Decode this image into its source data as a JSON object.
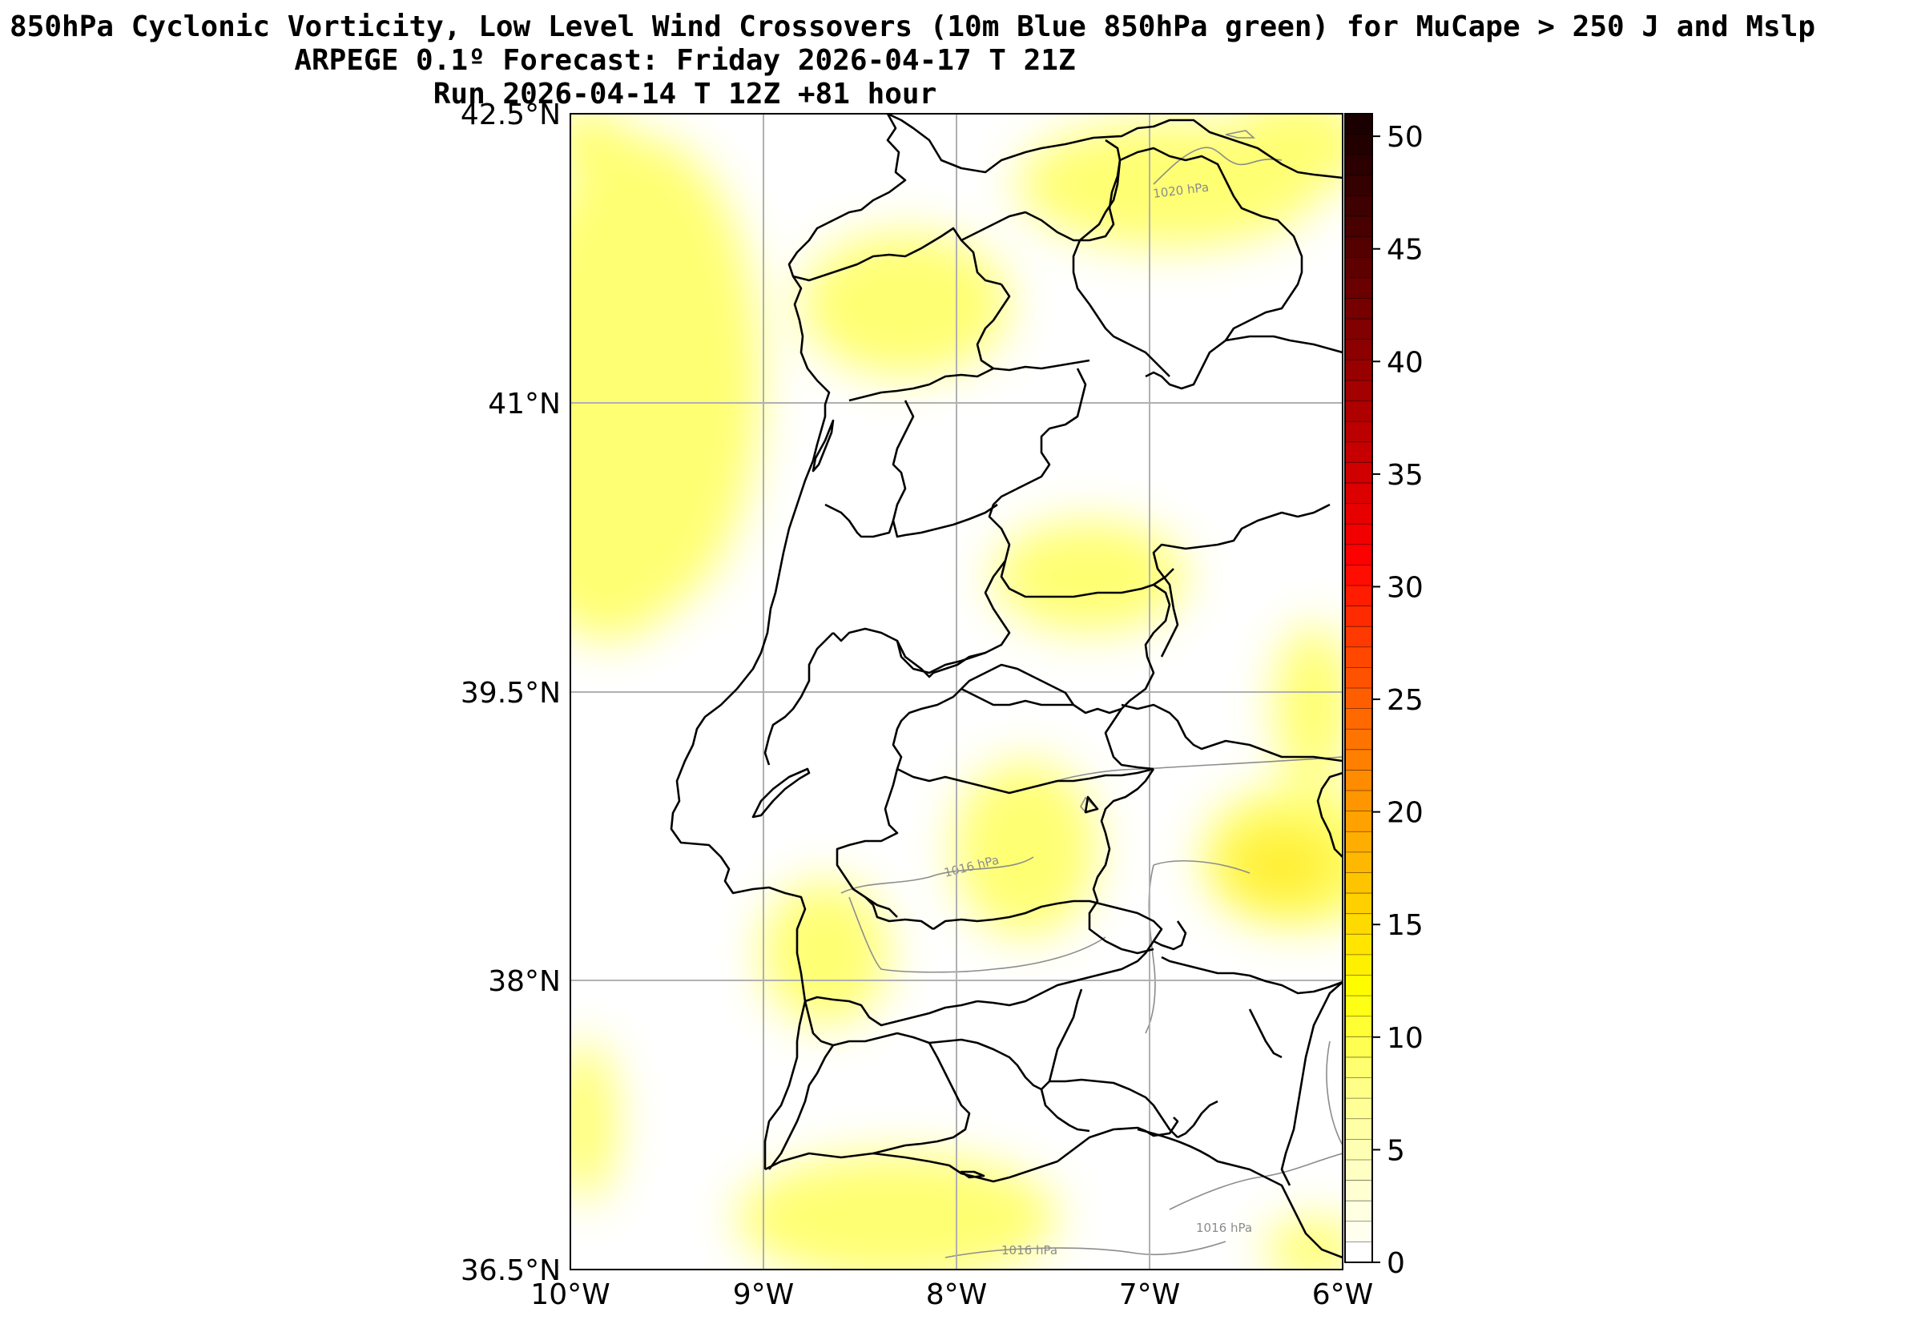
{
  "title": {
    "line1": "850hPa Cyclonic Vorticity, Low Level Wind Crossovers (10m Blue 850hPa green) for MuCape > 250 J and Mslp",
    "line2": "ARPEGE 0.1º Forecast: Friday 2026-04-17 T 21Z",
    "line3": "Run 2026-04-14 T 12Z +81 hour"
  },
  "map": {
    "lat_labels": [
      "42.5°N",
      "41°N",
      "39.5°N",
      "38°N",
      "36.5°N"
    ],
    "lon_labels": [
      "10°W",
      "9°W",
      "8°W",
      "7°W",
      "6°W"
    ],
    "extent": {
      "lon_min": -10,
      "lon_max": -6,
      "lat_min": 36.5,
      "lat_max": 42.5
    },
    "isobar_labels": [
      "1020 hPa",
      "1016 hPa",
      "1016 hPa",
      "1016 hPa"
    ],
    "fill_color": "#ffff00",
    "isobar_color": "#8c8c8c",
    "border_color": "#000000",
    "grid_color": "#b0b0b0"
  },
  "colorbar": {
    "ticks": [
      "0",
      "5",
      "10",
      "15",
      "20",
      "25",
      "30",
      "35",
      "40",
      "45",
      "50"
    ],
    "min": 0,
    "max": 51,
    "colors": [
      "#ffffff",
      "#ffffc0",
      "#ffff80",
      "#ffff00",
      "#ffd000",
      "#ffa000",
      "#ff7000",
      "#ff4000",
      "#ff0000",
      "#d00000",
      "#a00000",
      "#700000",
      "#400000",
      "#1a0000"
    ]
  }
}
